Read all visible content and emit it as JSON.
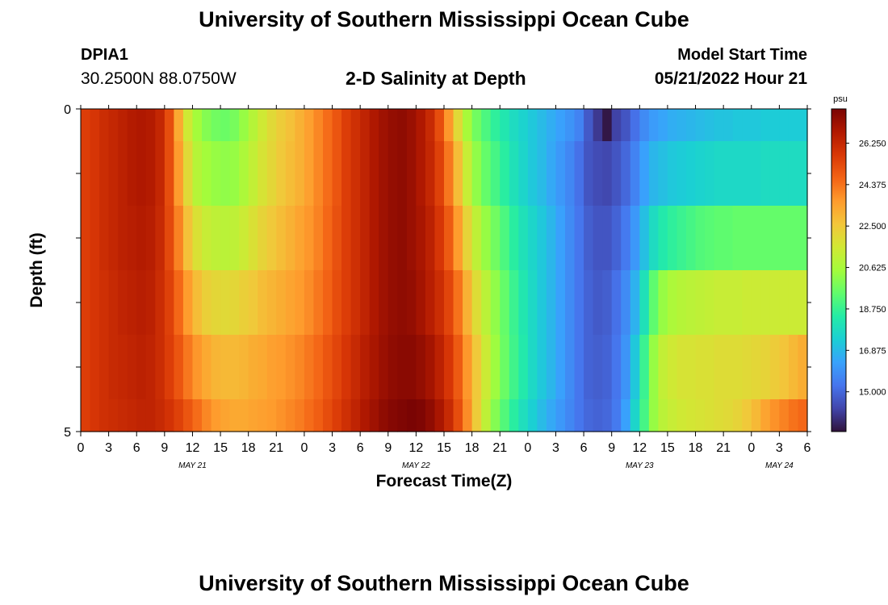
{
  "header": {
    "title": "University of Southern Mississippi Ocean Cube",
    "station_id": "DPIA1",
    "coords": "30.2500N  88.0750W",
    "subtitle": "2-D Salinity at Depth",
    "model_start_label": "Model Start Time",
    "model_start_time": "05/21/2022 Hour 21"
  },
  "footer": {
    "title": "University of Southern Mississippi Ocean Cube"
  },
  "chart_data": {
    "type": "heatmap",
    "xlabel": "Forecast Time(Z)",
    "ylabel": "Depth (ft)",
    "x_hours": [
      0,
      78
    ],
    "x_tick_labels": [
      "0",
      "3",
      "6",
      "9",
      "12",
      "15",
      "18",
      "21",
      "0",
      "3",
      "6",
      "9",
      "12",
      "15",
      "18",
      "21",
      "0",
      "3",
      "6",
      "9",
      "12",
      "15",
      "18",
      "21",
      "0",
      "3",
      "6"
    ],
    "date_labels": [
      {
        "label": "MAY 21",
        "hour": 12
      },
      {
        "label": "MAY 22",
        "hour": 36
      },
      {
        "label": "MAY 23",
        "hour": 60
      },
      {
        "label": "MAY 24",
        "hour": 75
      }
    ],
    "y_tick_labels": [
      "0",
      "5"
    ],
    "ylim": [
      0,
      5
    ],
    "colorbar": {
      "unit": "psu",
      "range": [
        13.2,
        27.8
      ],
      "tick_labels": [
        "26.250",
        "24.375",
        "22.500",
        "20.625",
        "18.750",
        "16.875",
        "15.000"
      ],
      "tick_values": [
        26.25,
        24.375,
        22.5,
        20.625,
        18.75,
        16.875,
        15.0
      ],
      "colors": [
        "#30123b",
        "#4145ab",
        "#4675ed",
        "#39a2fc",
        "#1bcfd4",
        "#24eca6",
        "#61fc6c",
        "#a4fc3b",
        "#d1e834",
        "#f3c63a",
        "#fe9b2d",
        "#f36315",
        "#d93806",
        "#b11901",
        "#7a0403"
      ]
    },
    "depth_layers_ft": [
      0,
      1,
      2,
      3,
      4,
      5
    ],
    "salinity_psu": [
      [
        25.6,
        25.8,
        26.1,
        26.3,
        26.5,
        26.7,
        26.8,
        26.7,
        26.3,
        25.2,
        23.3,
        21.5,
        20.5,
        20.0,
        19.7,
        19.6,
        19.8,
        20.3,
        20.9,
        21.5,
        22.0,
        22.4,
        22.7,
        23.1,
        23.5,
        24.0,
        24.5,
        25.0,
        25.6,
        26.0,
        26.4,
        26.8,
        27.1,
        27.3,
        27.4,
        27.2,
        26.8,
        26.2,
        25.2,
        23.7,
        22.0,
        20.6,
        19.7,
        19.1,
        18.6,
        18.2,
        17.8,
        17.5,
        17.2,
        16.9,
        16.6,
        16.3,
        16.0,
        15.6,
        14.7,
        14.0,
        13.3,
        14.2,
        14.6,
        15.2,
        15.8,
        16.2,
        16.4,
        16.6,
        16.7,
        16.8,
        16.9,
        17.0,
        17.1,
        17.1,
        17.2,
        17.2,
        17.2,
        17.3,
        17.3,
        17.3,
        17.3,
        17.3
      ],
      [
        25.6,
        25.8,
        26.1,
        26.3,
        26.5,
        26.7,
        26.8,
        26.7,
        26.3,
        25.2,
        23.6,
        22.0,
        20.9,
        20.5,
        20.3,
        20.2,
        20.3,
        20.7,
        21.2,
        21.7,
        22.1,
        22.5,
        22.8,
        23.1,
        23.5,
        24.0,
        24.5,
        25.0,
        25.6,
        26.0,
        26.4,
        26.8,
        27.1,
        27.3,
        27.4,
        27.2,
        26.8,
        26.3,
        25.5,
        24.3,
        22.8,
        21.3,
        20.2,
        19.5,
        19.0,
        18.5,
        18.0,
        17.6,
        17.2,
        16.9,
        16.5,
        16.1,
        15.7,
        15.2,
        14.6,
        14.4,
        14.3,
        14.6,
        15.0,
        15.6,
        16.3,
        16.8,
        17.0,
        17.2,
        17.3,
        17.4,
        17.5,
        17.6,
        17.7,
        17.7,
        17.7,
        17.7,
        17.7,
        17.8,
        17.8,
        17.8,
        17.8,
        17.8
      ],
      [
        25.6,
        25.8,
        26.1,
        26.3,
        26.5,
        26.6,
        26.7,
        26.6,
        26.2,
        25.3,
        24.1,
        22.7,
        21.8,
        21.3,
        21.1,
        21.0,
        21.1,
        21.4,
        21.8,
        22.2,
        22.5,
        22.8,
        23.1,
        23.4,
        23.7,
        24.1,
        24.6,
        25.1,
        25.6,
        26.0,
        26.4,
        26.8,
        27.1,
        27.3,
        27.4,
        27.2,
        26.9,
        26.5,
        25.8,
        24.9,
        23.6,
        22.2,
        21.1,
        20.3,
        19.7,
        19.1,
        18.5,
        18.0,
        17.6,
        17.2,
        16.8,
        16.3,
        15.8,
        15.3,
        14.8,
        14.6,
        14.6,
        14.9,
        15.4,
        16.1,
        17.0,
        17.8,
        18.3,
        18.6,
        18.8,
        19.0,
        19.2,
        19.3,
        19.4,
        19.4,
        19.5,
        19.5,
        19.5,
        19.5,
        19.5,
        19.5,
        19.5,
        19.5
      ],
      [
        25.6,
        25.8,
        26.0,
        26.2,
        26.4,
        26.5,
        26.6,
        26.5,
        26.1,
        25.5,
        24.6,
        23.6,
        22.8,
        22.3,
        22.1,
        22.0,
        22.1,
        22.3,
        22.5,
        22.8,
        23.0,
        23.2,
        23.4,
        23.6,
        23.9,
        24.3,
        24.7,
        25.2,
        25.6,
        26.0,
        26.4,
        26.8,
        27.1,
        27.3,
        27.4,
        27.3,
        27.0,
        26.6,
        26.1,
        25.4,
        24.4,
        23.1,
        21.9,
        21.0,
        20.2,
        19.5,
        18.8,
        18.2,
        17.7,
        17.2,
        16.8,
        16.3,
        15.8,
        15.3,
        14.9,
        14.7,
        14.8,
        15.2,
        15.8,
        16.7,
        18.0,
        19.4,
        20.3,
        20.7,
        20.9,
        21.0,
        21.1,
        21.2,
        21.3,
        21.3,
        21.3,
        21.4,
        21.4,
        21.4,
        21.4,
        21.4,
        21.4,
        21.4
      ],
      [
        25.6,
        25.8,
        26.0,
        26.2,
        26.3,
        26.4,
        26.5,
        26.4,
        26.1,
        25.6,
        25.0,
        24.3,
        23.7,
        23.3,
        23.0,
        22.9,
        22.9,
        23.0,
        23.2,
        23.3,
        23.5,
        23.6,
        23.8,
        24.0,
        24.3,
        24.6,
        25.0,
        25.4,
        25.8,
        26.2,
        26.6,
        26.9,
        27.2,
        27.4,
        27.5,
        27.5,
        27.3,
        27.0,
        26.5,
        25.8,
        24.9,
        23.7,
        22.5,
        21.4,
        20.4,
        19.6,
        18.9,
        18.3,
        17.7,
        17.2,
        16.8,
        16.3,
        15.8,
        15.3,
        14.9,
        14.8,
        14.9,
        15.3,
        16.0,
        17.2,
        18.8,
        20.3,
        21.2,
        21.5,
        21.7,
        21.7,
        21.8,
        21.8,
        21.9,
        21.9,
        21.9,
        22.0,
        22.1,
        22.2,
        22.4,
        22.6,
        22.9,
        23.2
      ],
      [
        25.6,
        25.8,
        26.0,
        26.1,
        26.2,
        26.3,
        26.4,
        26.4,
        26.2,
        25.9,
        25.5,
        25.0,
        24.5,
        24.0,
        23.6,
        23.4,
        23.3,
        23.3,
        23.4,
        23.5,
        23.6,
        23.8,
        24.0,
        24.2,
        24.5,
        24.8,
        25.2,
        25.6,
        26.0,
        26.4,
        26.8,
        27.1,
        27.4,
        27.6,
        27.7,
        27.8,
        27.7,
        27.4,
        26.9,
        26.2,
        25.2,
        23.9,
        22.4,
        21.1,
        20.0,
        19.2,
        18.5,
        17.9,
        17.4,
        16.9,
        16.5,
        16.1,
        15.7,
        15.3,
        15.0,
        14.9,
        15.0,
        15.4,
        16.3,
        17.6,
        19.0,
        20.3,
        21.0,
        21.3,
        21.5,
        21.6,
        21.7,
        21.8,
        21.9,
        22.0,
        22.2,
        22.5,
        22.9,
        23.4,
        23.8,
        24.1,
        24.4,
        24.6
      ]
    ]
  }
}
